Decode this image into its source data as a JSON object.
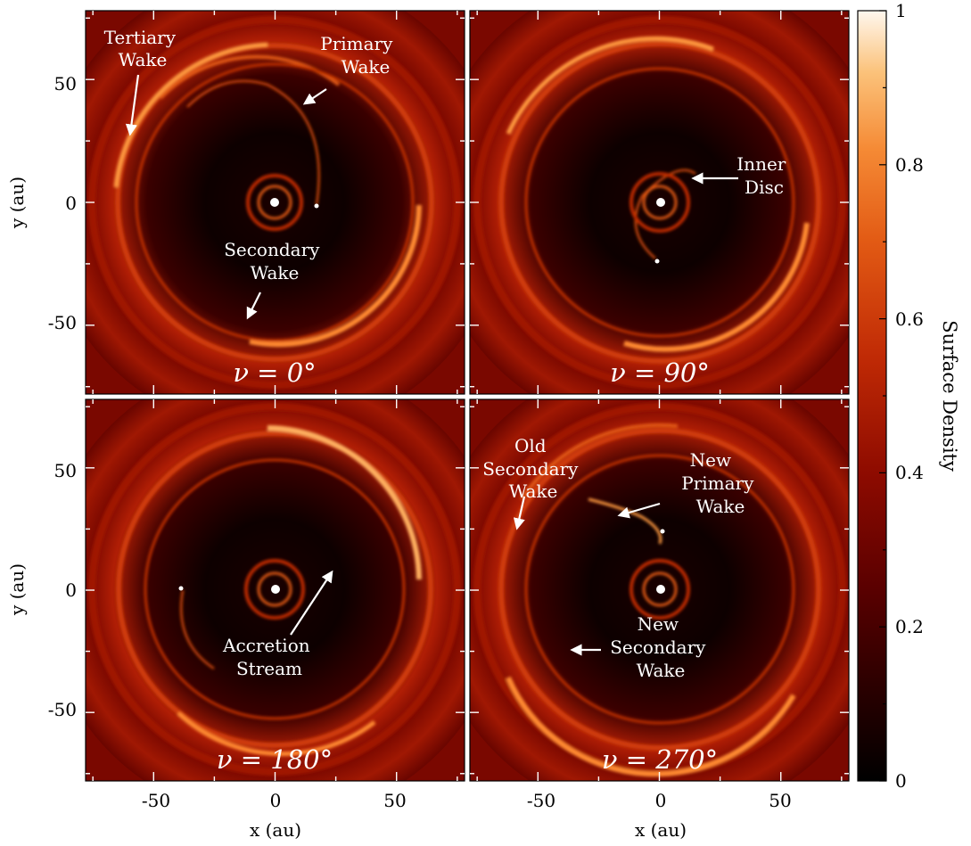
{
  "figure": {
    "colorbar": {
      "label": "Surface Density",
      "ticks": [
        "0",
        "0.2",
        "0.4",
        "0.6",
        "0.8",
        "1"
      ],
      "tick_values": [
        0,
        0.2,
        0.4,
        0.6,
        0.8,
        1
      ],
      "range": [
        0,
        1
      ],
      "colormap": [
        "#000000",
        "#2a0000",
        "#5a0000",
        "#8e0b00",
        "#c02a05",
        "#e25a14",
        "#f58a35",
        "#fbc27a",
        "#fff7ee"
      ]
    },
    "axes": {
      "xlabel": "x (au)",
      "ylabel": "y (au)",
      "xtick_labels": [
        "-50",
        "0",
        "50"
      ],
      "ytick_labels": [
        "50",
        "0",
        "-50"
      ],
      "tick_values": [
        -50,
        0,
        50
      ],
      "range": [
        -78,
        78
      ]
    },
    "panels": [
      {
        "title": "ν = 0°",
        "annotations": [
          {
            "line1": "Tertiary",
            "line2": "Wake"
          },
          {
            "line1": "Primary",
            "line2": "Wake"
          },
          {
            "line1": "Secondary",
            "line2": "Wake"
          }
        ]
      },
      {
        "title": "ν = 90°",
        "annotations": [
          {
            "line1": "Inner",
            "line2": "Disc"
          }
        ]
      },
      {
        "title": "ν = 180°",
        "annotations": [
          {
            "line1": "Accretion",
            "line2": "Stream"
          }
        ]
      },
      {
        "title": "ν = 270°",
        "annotations": [
          {
            "line1": "Old",
            "line2": "Secondary",
            "line3": "Wake"
          },
          {
            "line1": "New",
            "line2": "Primary",
            "line3": "Wake"
          },
          {
            "line1": "New",
            "line2": "Secondary",
            "line3": "Wake"
          }
        ]
      }
    ]
  }
}
